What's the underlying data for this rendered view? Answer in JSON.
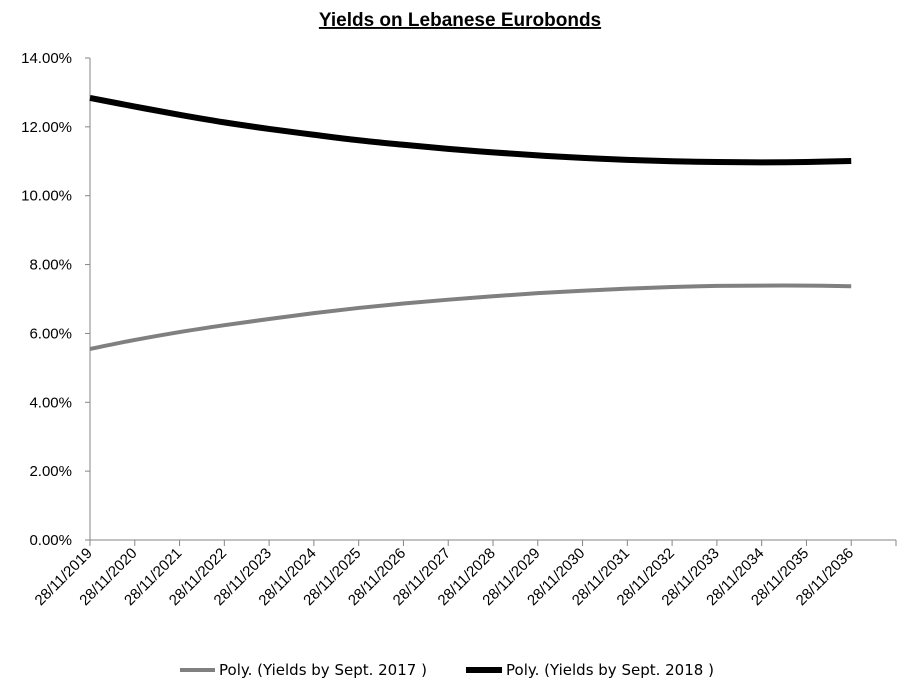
{
  "chart_data": {
    "type": "line",
    "title": "Yields on Lebanese Eurobonds",
    "xlabel": "",
    "ylabel": "",
    "x": [
      "28/11/2019",
      "28/11/2020",
      "28/11/2021",
      "28/11/2022",
      "28/11/2023",
      "28/11/2024",
      "28/11/2025",
      "28/11/2026",
      "28/11/2027",
      "28/11/2028",
      "28/11/2029",
      "28/11/2030",
      "28/11/2031",
      "28/11/2032",
      "28/11/2033",
      "28/11/2034",
      "28/11/2035",
      "28/11/2036"
    ],
    "ylim": [
      0,
      14
    ],
    "yticks": [
      0,
      2,
      4,
      6,
      8,
      10,
      12,
      14
    ],
    "ytick_labels": [
      "0.00%",
      "2.00%",
      "4.00%",
      "6.00%",
      "8.00%",
      "10.00%",
      "12.00%",
      "14.00%"
    ],
    "grid": false,
    "legend_position": "bottom",
    "series": [
      {
        "name": "Poly. (Yields by Sept. 2017 )",
        "color": "#808080",
        "values": [
          5.55,
          5.81,
          6.04,
          6.24,
          6.42,
          6.59,
          6.74,
          6.87,
          6.98,
          7.08,
          7.17,
          7.24,
          7.3,
          7.35,
          7.38,
          7.39,
          7.39,
          7.37
        ]
      },
      {
        "name": "Poly. (Yields by Sept. 2018 )",
        "color": "#000000",
        "values": [
          12.84,
          12.59,
          12.35,
          12.13,
          11.94,
          11.77,
          11.61,
          11.48,
          11.36,
          11.26,
          11.17,
          11.1,
          11.04,
          11.0,
          10.98,
          10.97,
          10.98,
          11.01
        ]
      }
    ]
  }
}
